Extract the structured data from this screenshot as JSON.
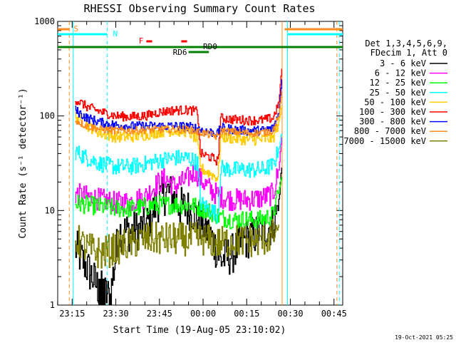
{
  "chart_data": {
    "type": "line",
    "title": "RHESSI Observing Summary Count Rates",
    "xlabel": "Start Time (19-Aug-05 23:10:02)",
    "ylabel": "Count Rate (s⁻¹ detector⁻¹)",
    "x_scale": "time",
    "y_scale": "log",
    "xlim": [
      "23:10:02",
      "00:48:00"
    ],
    "ylim": [
      1,
      1000
    ],
    "x_ticks": [
      "23:15",
      "23:30",
      "23:45",
      "00:00",
      "00:15",
      "00:30",
      "00:45"
    ],
    "y_ticks": [
      "1",
      "10",
      "100",
      "1000"
    ],
    "legend_header": [
      "Det 1,3,4,5,6,9,",
      "FDecim 1, Att 0"
    ],
    "legend_placement": "right",
    "footer": "19-Oct-2021 05:25",
    "markers": {
      "S": {
        "label": "S",
        "color": "#ff8c1a"
      },
      "N": {
        "label": "N",
        "color": "#00ffff"
      },
      "F": {
        "label": "F",
        "color": "#ff0000"
      },
      "RD0": {
        "label": "RD0",
        "color": "#008000"
      },
      "RD6": {
        "label": "RD6",
        "color": "#008000"
      }
    },
    "series": [
      {
        "name": "3 - 6 keV",
        "color": "#000000",
        "points": [
          [
            "23:16",
            4
          ],
          [
            "23:20",
            2.5
          ],
          [
            "23:24",
            1.5
          ],
          [
            "23:28",
            1.2
          ],
          [
            "23:31",
            6
          ],
          [
            "23:35",
            6
          ],
          [
            "23:40",
            6.5
          ],
          [
            "23:44",
            12
          ],
          [
            "23:48",
            16
          ],
          [
            "23:52",
            11
          ],
          [
            "23:56",
            10
          ],
          [
            "00:00",
            7
          ],
          [
            "00:03",
            5
          ],
          [
            "00:06",
            3
          ],
          [
            "00:10",
            3.5
          ],
          [
            "00:15",
            5
          ],
          [
            "00:20",
            6
          ],
          [
            "00:24",
            7
          ],
          [
            "00:26",
            12
          ],
          [
            "00:27",
            30
          ]
        ]
      },
      {
        "name": "6 - 12 keV",
        "color": "#ff00ff",
        "points": [
          [
            "23:16",
            15
          ],
          [
            "23:20",
            14
          ],
          [
            "23:25",
            13
          ],
          [
            "23:30",
            12
          ],
          [
            "23:35",
            12.5
          ],
          [
            "23:40",
            14
          ],
          [
            "23:44",
            19
          ],
          [
            "23:47",
            22
          ],
          [
            "23:50",
            18
          ],
          [
            "23:54",
            21
          ],
          [
            "23:57",
            26
          ],
          [
            "00:00",
            20
          ],
          [
            "00:03",
            16
          ],
          [
            "00:06",
            14
          ],
          [
            "00:10",
            13
          ],
          [
            "00:15",
            13
          ],
          [
            "00:20",
            13.5
          ],
          [
            "00:24",
            15
          ],
          [
            "00:26",
            28
          ],
          [
            "00:27",
            60
          ]
        ]
      },
      {
        "name": "12 - 25 keV",
        "color": "#00ff00",
        "points": [
          [
            "23:16",
            12
          ],
          [
            "23:20",
            11.5
          ],
          [
            "23:25",
            11
          ],
          [
            "23:30",
            10.5
          ],
          [
            "23:35",
            10.5
          ],
          [
            "23:40",
            11
          ],
          [
            "23:45",
            11.5
          ],
          [
            "23:50",
            11.5
          ],
          [
            "23:55",
            11.5
          ],
          [
            "00:00",
            10.5
          ],
          [
            "00:03",
            9.5
          ],
          [
            "00:06",
            8.5
          ],
          [
            "00:10",
            8
          ],
          [
            "00:15",
            8
          ],
          [
            "00:20",
            8
          ],
          [
            "00:24",
            9
          ],
          [
            "00:26",
            16
          ],
          [
            "00:27",
            22
          ]
        ]
      },
      {
        "name": "25 - 50 keV",
        "color": "#00ffff",
        "points": [
          [
            "23:16",
            42
          ],
          [
            "23:20",
            36
          ],
          [
            "23:25",
            31
          ],
          [
            "23:30",
            29
          ],
          [
            "23:35",
            29
          ],
          [
            "23:40",
            31
          ],
          [
            "23:45",
            34
          ],
          [
            "23:50",
            36
          ],
          [
            "23:55",
            36
          ],
          [
            "23:58",
            32
          ],
          [
            "23:59",
            12
          ],
          [
            "00:03",
            10
          ],
          [
            "00:05",
            9
          ],
          [
            "00:06",
            28
          ],
          [
            "00:10",
            27
          ],
          [
            "00:15",
            27
          ],
          [
            "00:20",
            27
          ],
          [
            "00:24",
            30
          ],
          [
            "00:26",
            45
          ],
          [
            "00:27",
            65
          ]
        ]
      },
      {
        "name": "50 - 100 keV",
        "color": "#ffcc00",
        "points": [
          [
            "23:16",
            100
          ],
          [
            "23:20",
            80
          ],
          [
            "23:25",
            65
          ],
          [
            "23:30",
            60
          ],
          [
            "23:35",
            60
          ],
          [
            "23:40",
            63
          ],
          [
            "23:45",
            68
          ],
          [
            "23:50",
            70
          ],
          [
            "23:55",
            68
          ],
          [
            "23:58",
            55
          ],
          [
            "23:59",
            28
          ],
          [
            "00:03",
            24
          ],
          [
            "00:05",
            22
          ],
          [
            "00:06",
            60
          ],
          [
            "00:10",
            58
          ],
          [
            "00:15",
            56
          ],
          [
            "00:20",
            56
          ],
          [
            "00:24",
            58
          ],
          [
            "00:26",
            85
          ],
          [
            "00:27",
            130
          ]
        ]
      },
      {
        "name": "100 - 300 keV",
        "color": "#ff0000",
        "points": [
          [
            "23:16",
            150
          ],
          [
            "23:20",
            125
          ],
          [
            "23:25",
            110
          ],
          [
            "23:30",
            100
          ],
          [
            "23:35",
            98
          ],
          [
            "23:40",
            100
          ],
          [
            "23:45",
            110
          ],
          [
            "23:50",
            115
          ],
          [
            "23:55",
            115
          ],
          [
            "23:58",
            112
          ],
          [
            "23:59",
            40
          ],
          [
            "00:03",
            36
          ],
          [
            "00:05",
            33
          ],
          [
            "00:06",
            95
          ],
          [
            "00:10",
            92
          ],
          [
            "00:15",
            90
          ],
          [
            "00:20",
            90
          ],
          [
            "00:24",
            95
          ],
          [
            "00:26",
            140
          ],
          [
            "00:27",
            320
          ]
        ]
      },
      {
        "name": "300 - 800 keV",
        "color": "#0000ff",
        "points": [
          [
            "23:16",
            115
          ],
          [
            "23:20",
            95
          ],
          [
            "23:25",
            85
          ],
          [
            "23:30",
            80
          ],
          [
            "23:35",
            78
          ],
          [
            "23:40",
            78
          ],
          [
            "23:45",
            78
          ],
          [
            "23:50",
            78
          ],
          [
            "23:55",
            77
          ],
          [
            "23:58",
            74
          ],
          [
            "00:00",
            70
          ],
          [
            "00:05",
            65
          ],
          [
            "00:06",
            75
          ],
          [
            "00:10",
            72
          ],
          [
            "00:15",
            70
          ],
          [
            "00:20",
            70
          ],
          [
            "00:24",
            74
          ],
          [
            "00:26",
            110
          ],
          [
            "00:27",
            240
          ]
        ]
      },
      {
        "name": "800 - 7000 keV",
        "color": "#ff8c1a",
        "points": [
          [
            "23:16",
            90
          ],
          [
            "23:20",
            78
          ],
          [
            "23:25",
            72
          ],
          [
            "23:30",
            70
          ],
          [
            "23:35",
            70
          ],
          [
            "23:40",
            71
          ],
          [
            "23:45",
            72
          ],
          [
            "23:50",
            72
          ],
          [
            "23:55",
            72
          ],
          [
            "00:00",
            66
          ],
          [
            "00:05",
            60
          ],
          [
            "00:06",
            70
          ],
          [
            "00:10",
            68
          ],
          [
            "00:15",
            66
          ],
          [
            "00:20",
            66
          ],
          [
            "00:24",
            70
          ],
          [
            "00:26",
            100
          ],
          [
            "00:27",
            180
          ]
        ]
      },
      {
        "name": "7000 - 15000 keV",
        "color": "#808000",
        "points": [
          [
            "23:16",
            5
          ],
          [
            "23:20",
            4
          ],
          [
            "23:25",
            3.5
          ],
          [
            "23:30",
            4
          ],
          [
            "23:35",
            4.5
          ],
          [
            "23:40",
            5
          ],
          [
            "23:45",
            5
          ],
          [
            "23:50",
            5
          ],
          [
            "23:55",
            5
          ],
          [
            "00:00",
            5
          ],
          [
            "00:05",
            4.5
          ],
          [
            "00:10",
            4.8
          ],
          [
            "00:15",
            4.8
          ],
          [
            "00:20",
            4.8
          ],
          [
            "00:24",
            5.5
          ],
          [
            "00:26",
            7
          ]
        ]
      }
    ]
  }
}
